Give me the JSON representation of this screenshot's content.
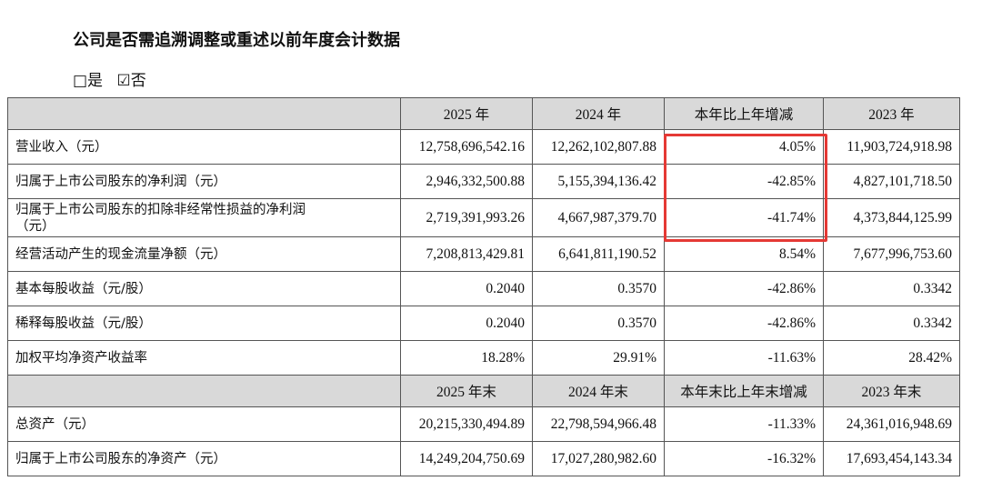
{
  "header": {
    "title": "公司是否需追溯调整或重述以前年度会计数据",
    "options": [
      "□是",
      "☑否"
    ]
  },
  "table": {
    "rows": [
      {
        "header": [
          "2025 年",
          "2024 年",
          "本年比上年增减",
          "2023 年"
        ]
      },
      {
        "label": "营业收入（元）",
        "cells": [
          "12,758,696,542.16",
          "12,262,102,807.88",
          "4.05%",
          "11,903,724,918.98"
        ]
      },
      {
        "label": "归属于上市公司股东的净利润（元）",
        "cells": [
          "2,946,332,500.88",
          "5,155,394,136.42",
          "-42.85%",
          "4,827,101,718.50"
        ]
      },
      {
        "label": "归属于上市公司股东的扣除非经常性损益的净利润\n（元）",
        "cells": [
          "2,719,391,993.26",
          "4,667,987,379.70",
          "-41.74%",
          "4,373,844,125.99"
        ]
      },
      {
        "label": "经营活动产生的现金流量净额（元）",
        "cells": [
          "7,208,813,429.81",
          "6,641,811,190.52",
          "8.54%",
          "7,677,996,753.60"
        ]
      },
      {
        "label": "基本每股收益（元/股）",
        "cells": [
          "0.2040",
          "0.3570",
          "-42.86%",
          "0.3342"
        ]
      },
      {
        "label": "稀释每股收益（元/股）",
        "cells": [
          "0.2040",
          "0.3570",
          "-42.86%",
          "0.3342"
        ]
      },
      {
        "label": "加权平均净资产收益率",
        "cells": [
          "18.28%",
          "29.91%",
          "-11.63%",
          "28.42%"
        ]
      },
      {
        "header": [
          "2025 年末",
          "2024 年末",
          "本年末比上年末增减",
          "2023 年末"
        ]
      },
      {
        "label": "总资产（元）",
        "cells": [
          "20,215,330,494.89",
          "22,798,594,966.48",
          "-11.33%",
          "24,361,016,948.69"
        ]
      },
      {
        "label": "归属于上市公司股东的净资产（元）",
        "cells": [
          "14,249,204,750.69",
          "17,027,280,982.60",
          "-16.32%",
          "17,693,454,143.34"
        ]
      }
    ]
  }
}
